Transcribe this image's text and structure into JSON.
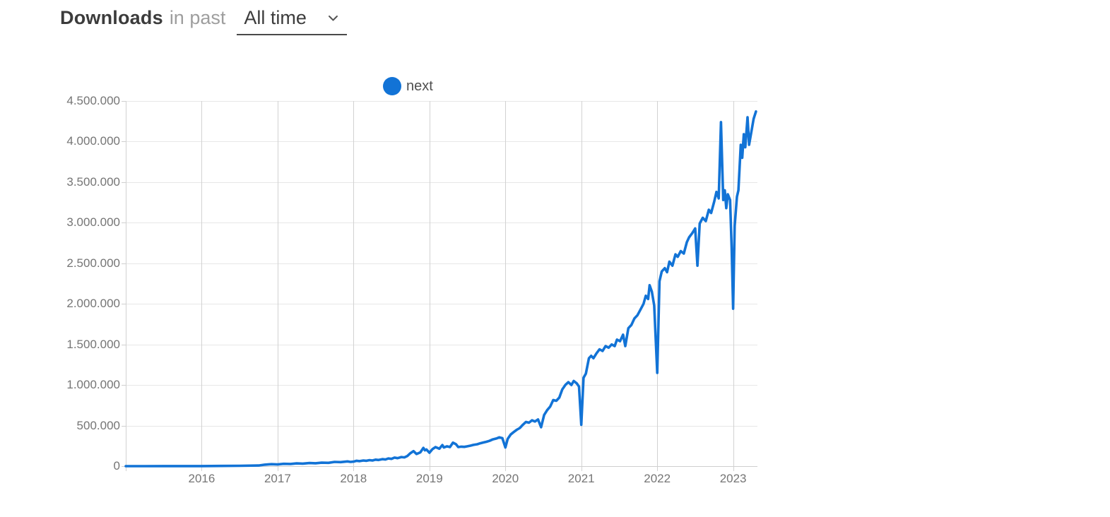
{
  "header": {
    "title": "Downloads",
    "subtitle": "in past",
    "range_value": "All time",
    "range_options_visible": [
      "All time"
    ]
  },
  "legend": {
    "items": [
      {
        "label": "next",
        "color": "#1273d6"
      }
    ]
  },
  "chart_data": {
    "type": "line",
    "title": "Downloads in past All time",
    "xlabel": "",
    "ylabel": "",
    "grid": true,
    "legend_position": "top-center",
    "xlim": [
      2015.0,
      2023.32
    ],
    "ylim": [
      0,
      4500000
    ],
    "x_ticks": [
      {
        "value": 2016,
        "label": "2016"
      },
      {
        "value": 2017,
        "label": "2017"
      },
      {
        "value": 2018,
        "label": "2018"
      },
      {
        "value": 2019,
        "label": "2019"
      },
      {
        "value": 2020,
        "label": "2020"
      },
      {
        "value": 2021,
        "label": "2021"
      },
      {
        "value": 2022,
        "label": "2022"
      },
      {
        "value": 2023,
        "label": "2023"
      }
    ],
    "y_ticks": [
      {
        "value": 0,
        "label": "0"
      },
      {
        "value": 500000,
        "label": "500.000"
      },
      {
        "value": 1000000,
        "label": "1.000.000"
      },
      {
        "value": 1500000,
        "label": "1.500.000"
      },
      {
        "value": 2000000,
        "label": "2.000.000"
      },
      {
        "value": 2500000,
        "label": "2.500.000"
      },
      {
        "value": 3000000,
        "label": "3.000.000"
      },
      {
        "value": 3500000,
        "label": "3.500.000"
      },
      {
        "value": 4000000,
        "label": "4.000.000"
      },
      {
        "value": 4500000,
        "label": "4.500.000"
      }
    ],
    "series": [
      {
        "name": "next",
        "color": "#1273d6",
        "points": [
          [
            2015.0,
            300
          ],
          [
            2015.25,
            400
          ],
          [
            2015.5,
            500
          ],
          [
            2015.75,
            700
          ],
          [
            2016.0,
            1200
          ],
          [
            2016.25,
            2500
          ],
          [
            2016.5,
            4500
          ],
          [
            2016.75,
            8000
          ],
          [
            2016.83,
            18000
          ],
          [
            2016.92,
            24000
          ],
          [
            2017.0,
            21000
          ],
          [
            2017.08,
            29000
          ],
          [
            2017.17,
            27000
          ],
          [
            2017.25,
            34000
          ],
          [
            2017.33,
            31000
          ],
          [
            2017.42,
            38000
          ],
          [
            2017.5,
            36000
          ],
          [
            2017.58,
            43000
          ],
          [
            2017.67,
            41000
          ],
          [
            2017.75,
            52000
          ],
          [
            2017.83,
            50000
          ],
          [
            2017.92,
            58000
          ],
          [
            2017.96,
            52000
          ],
          [
            2018.0,
            56000
          ],
          [
            2018.04,
            66000
          ],
          [
            2018.08,
            62000
          ],
          [
            2018.13,
            70000
          ],
          [
            2018.17,
            66000
          ],
          [
            2018.21,
            74000
          ],
          [
            2018.25,
            70000
          ],
          [
            2018.29,
            80000
          ],
          [
            2018.33,
            76000
          ],
          [
            2018.38,
            86000
          ],
          [
            2018.42,
            82000
          ],
          [
            2018.46,
            95000
          ],
          [
            2018.5,
            90000
          ],
          [
            2018.54,
            105000
          ],
          [
            2018.58,
            98000
          ],
          [
            2018.63,
            112000
          ],
          [
            2018.67,
            108000
          ],
          [
            2018.71,
            125000
          ],
          [
            2018.75,
            160000
          ],
          [
            2018.79,
            185000
          ],
          [
            2018.83,
            150000
          ],
          [
            2018.88,
            170000
          ],
          [
            2018.92,
            225000
          ],
          [
            2018.94,
            195000
          ],
          [
            2018.96,
            205000
          ],
          [
            2019.0,
            165000
          ],
          [
            2019.04,
            210000
          ],
          [
            2019.08,
            235000
          ],
          [
            2019.13,
            215000
          ],
          [
            2019.17,
            260000
          ],
          [
            2019.19,
            230000
          ],
          [
            2019.23,
            245000
          ],
          [
            2019.27,
            235000
          ],
          [
            2019.31,
            290000
          ],
          [
            2019.35,
            270000
          ],
          [
            2019.38,
            235000
          ],
          [
            2019.42,
            240000
          ],
          [
            2019.46,
            238000
          ],
          [
            2019.5,
            245000
          ],
          [
            2019.54,
            252000
          ],
          [
            2019.58,
            262000
          ],
          [
            2019.63,
            270000
          ],
          [
            2019.67,
            282000
          ],
          [
            2019.71,
            292000
          ],
          [
            2019.75,
            300000
          ],
          [
            2019.79,
            312000
          ],
          [
            2019.83,
            328000
          ],
          [
            2019.88,
            340000
          ],
          [
            2019.92,
            355000
          ],
          [
            2019.96,
            345000
          ],
          [
            2020.0,
            230000
          ],
          [
            2020.03,
            335000
          ],
          [
            2020.07,
            390000
          ],
          [
            2020.11,
            420000
          ],
          [
            2020.15,
            448000
          ],
          [
            2020.19,
            470000
          ],
          [
            2020.23,
            510000
          ],
          [
            2020.27,
            545000
          ],
          [
            2020.31,
            535000
          ],
          [
            2020.35,
            565000
          ],
          [
            2020.39,
            550000
          ],
          [
            2020.43,
            575000
          ],
          [
            2020.47,
            480000
          ],
          [
            2020.51,
            630000
          ],
          [
            2020.55,
            690000
          ],
          [
            2020.59,
            735000
          ],
          [
            2020.63,
            815000
          ],
          [
            2020.67,
            805000
          ],
          [
            2020.71,
            845000
          ],
          [
            2020.75,
            945000
          ],
          [
            2020.79,
            1000000
          ],
          [
            2020.83,
            1035000
          ],
          [
            2020.87,
            1000000
          ],
          [
            2020.9,
            1050000
          ],
          [
            2020.94,
            1020000
          ],
          [
            2020.97,
            980000
          ],
          [
            2021.0,
            510000
          ],
          [
            2021.03,
            1090000
          ],
          [
            2021.06,
            1140000
          ],
          [
            2021.1,
            1330000
          ],
          [
            2021.13,
            1360000
          ],
          [
            2021.16,
            1330000
          ],
          [
            2021.2,
            1390000
          ],
          [
            2021.24,
            1440000
          ],
          [
            2021.28,
            1420000
          ],
          [
            2021.32,
            1480000
          ],
          [
            2021.36,
            1460000
          ],
          [
            2021.4,
            1500000
          ],
          [
            2021.44,
            1480000
          ],
          [
            2021.47,
            1560000
          ],
          [
            2021.51,
            1540000
          ],
          [
            2021.55,
            1620000
          ],
          [
            2021.58,
            1480000
          ],
          [
            2021.62,
            1700000
          ],
          [
            2021.66,
            1740000
          ],
          [
            2021.7,
            1820000
          ],
          [
            2021.74,
            1860000
          ],
          [
            2021.78,
            1930000
          ],
          [
            2021.82,
            2000000
          ],
          [
            2021.85,
            2100000
          ],
          [
            2021.88,
            2060000
          ],
          [
            2021.9,
            2230000
          ],
          [
            2021.93,
            2150000
          ],
          [
            2021.96,
            1980000
          ],
          [
            2022.0,
            1150000
          ],
          [
            2022.03,
            2280000
          ],
          [
            2022.06,
            2400000
          ],
          [
            2022.1,
            2440000
          ],
          [
            2022.13,
            2390000
          ],
          [
            2022.16,
            2520000
          ],
          [
            2022.2,
            2470000
          ],
          [
            2022.24,
            2610000
          ],
          [
            2022.27,
            2580000
          ],
          [
            2022.31,
            2650000
          ],
          [
            2022.35,
            2620000
          ],
          [
            2022.39,
            2760000
          ],
          [
            2022.42,
            2820000
          ],
          [
            2022.46,
            2870000
          ],
          [
            2022.5,
            2930000
          ],
          [
            2022.53,
            2470000
          ],
          [
            2022.56,
            2990000
          ],
          [
            2022.6,
            3060000
          ],
          [
            2022.64,
            3020000
          ],
          [
            2022.68,
            3160000
          ],
          [
            2022.71,
            3120000
          ],
          [
            2022.75,
            3260000
          ],
          [
            2022.78,
            3380000
          ],
          [
            2022.81,
            3300000
          ],
          [
            2022.84,
            4240000
          ],
          [
            2022.87,
            3280000
          ],
          [
            2022.89,
            3400000
          ],
          [
            2022.91,
            3180000
          ],
          [
            2022.93,
            3350000
          ],
          [
            2022.96,
            3280000
          ],
          [
            2022.98,
            2700000
          ],
          [
            2023.0,
            1940000
          ],
          [
            2023.02,
            2960000
          ],
          [
            2023.05,
            3320000
          ],
          [
            2023.07,
            3400000
          ],
          [
            2023.1,
            3960000
          ],
          [
            2023.12,
            3800000
          ],
          [
            2023.14,
            4090000
          ],
          [
            2023.16,
            3930000
          ],
          [
            2023.19,
            4300000
          ],
          [
            2023.21,
            3960000
          ],
          [
            2023.24,
            4120000
          ],
          [
            2023.27,
            4280000
          ],
          [
            2023.3,
            4370000
          ]
        ]
      }
    ]
  }
}
